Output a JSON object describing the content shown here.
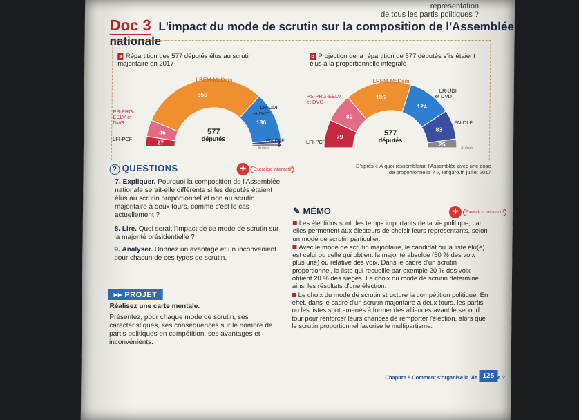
{
  "top_note": [
    "représentation",
    "de tous les partis politiques ?"
  ],
  "doc": {
    "number": "Doc 3",
    "title": "L'impact du mode de scrutin sur la composition de l'Assemblée nationale"
  },
  "fig_a": {
    "tag": "a",
    "title": "Répartition des 577 députés élus au scrutin majoritaire en 2017",
    "center_value": "577",
    "center_label": "députés"
  },
  "fig_b": {
    "tag": "b",
    "title": "Projection de la répartition de 577 députés s'ils étaient élus à la proportionnelle intégrale",
    "center_value": "577",
    "center_label": "députés"
  },
  "chart_data": [
    {
      "type": "pie",
      "title": "Répartition des 577 députés élus au scrutin majoritaire en 2017",
      "subtype": "hemicycle",
      "categories": [
        "LFI-PCF",
        "PS-PRG-EELV et DVG",
        "LREM-MoDem",
        "LR-UDI et DVD",
        "FN-DLF",
        "Autres"
      ],
      "values": [
        27,
        46,
        350,
        136,
        9,
        9
      ],
      "colors": [
        "#c8283f",
        "#e46b84",
        "#ef8f2f",
        "#2f7fd0",
        "#3a4fa0",
        "#8a8a8a"
      ]
    },
    {
      "type": "pie",
      "title": "Projection de la répartition de 577 députés s'ils étaient élus à la proportionnelle intégrale",
      "subtype": "hemicycle",
      "categories": [
        "LFI-PCF",
        "PS-PRG-EELV et DVG",
        "LREM-MoDem",
        "LR-UDI et DVD",
        "FN-DLF",
        "Autres"
      ],
      "values": [
        79,
        80,
        186,
        124,
        83,
        25
      ],
      "colors": [
        "#c8283f",
        "#e46b84",
        "#ef8f2f",
        "#2f7fd0",
        "#3a4fa0",
        "#8a8a8a"
      ]
    }
  ],
  "labels_a": {
    "lrem": "LREM-MoDem",
    "ps": "PS-PRG-EELV et DVG",
    "lfi": "LFI-PCF",
    "lr": "LR-UDI et DVD",
    "fn": "FN-DLF",
    "autres": "Autres"
  },
  "labels_b": {
    "lrem": "LREM-MoDem",
    "ps": "PS-PRG-EELV et DVG",
    "lfi": "LFI-PCF",
    "lr": "LR-UDI et DVD",
    "fn": "FN-DLF",
    "autres": "Autres"
  },
  "source": "D'après « À quoi ressemblerait l'Assemblée avec une dose de proportionnelle ? », lefigaro.fr, juillet 2017",
  "questions": {
    "heading": "QUESTIONS",
    "badge": "Exercice interactif",
    "items": [
      {
        "num": "7.",
        "verb": "Expliquer.",
        "text": "Pourquoi la composition de l'Assemblée nationale serait-elle différente si les députés étaient élus au scrutin proportionnel et non au scrutin majoritaire à deux tours, comme c'est le cas actuellement ?"
      },
      {
        "num": "8.",
        "verb": "Lire.",
        "text": "Quel serait l'impact de ce mode de scrutin sur la majorité présidentielle ?"
      },
      {
        "num": "9.",
        "verb": "Analyser.",
        "text": "Donnez un avantage et un inconvénient pour chacun de ces types de scrutin."
      }
    ]
  },
  "projet": {
    "heading": "PROJET",
    "subtitle": "Réalisez une carte mentale.",
    "text": "Présentez, pour chaque mode de scrutin, ses caractéristiques, ses conséquences sur le nombre de partis politiques en compétition, ses avantages et inconvénients."
  },
  "memo": {
    "heading": "MÉMO",
    "badge": "Exercice interactif",
    "paragraphs": [
      "Les élections sont des temps importants de la vie politique, car elles permettent aux électeurs de choisir leurs représentants, selon un mode de scrutin particulier.",
      "Avec le mode de scrutin majoritaire, le candidat ou la liste élu(e) est celui ou celle qui obtient la majorité absolue (50 % des voix plus une) ou relative des voix. Dans le cadre d'un scrutin proportionnel, la liste qui recueille par exemple 20 % des voix obtient 20 % des sièges. Le choix du mode de scrutin détermine ainsi les résultats d'une élection.",
      "Le choix du mode de scrutin structure la compétition politique. En effet, dans le cadre d'un scrutin majoritaire à deux tours, les partis ou les listes sont amenés à former des alliances avant le second tour pour renforcer leurs chances de remporter l'élection, alors que le scrutin proportionnel favorise le multipartisme."
    ]
  },
  "footer": {
    "chapter": "Chapitre 5 Comment s'organise la vie politique ?",
    "page": "125"
  }
}
